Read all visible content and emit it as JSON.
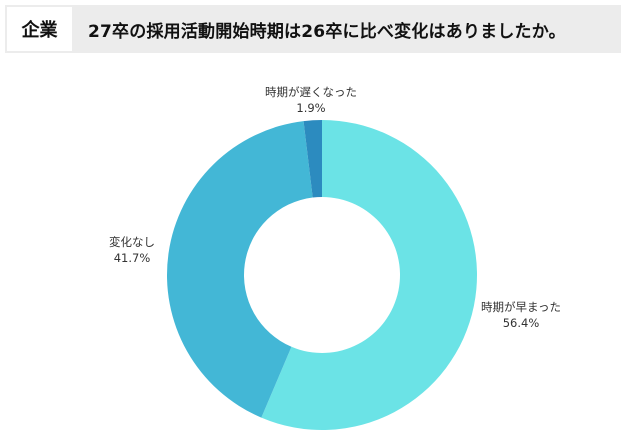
{
  "header": {
    "tag": "企業",
    "title": "27卒の採用活動開始時期は26卒に比べ変化はありましたか。"
  },
  "chart_data": {
    "type": "pie",
    "variant": "donut",
    "title": "27卒の採用活動開始時期は26卒に比べ変化はありましたか。",
    "categories": [
      "時期が早まった",
      "変化なし",
      "時期が遅くなった"
    ],
    "values": [
      56.4,
      41.7,
      1.9
    ],
    "unit": "%",
    "colors": [
      "#6be3e6",
      "#43b7d6",
      "#2c8bbf"
    ],
    "labels": [
      {
        "name": "時期が早まった",
        "value": "56.4%"
      },
      {
        "name": "変化なし",
        "value": "41.7%"
      },
      {
        "name": "時期が遅くなった",
        "value": "1.9%"
      }
    ],
    "start_angle": "12 o'clock, clockwise",
    "legend": "none (labels placed outside slices)"
  }
}
